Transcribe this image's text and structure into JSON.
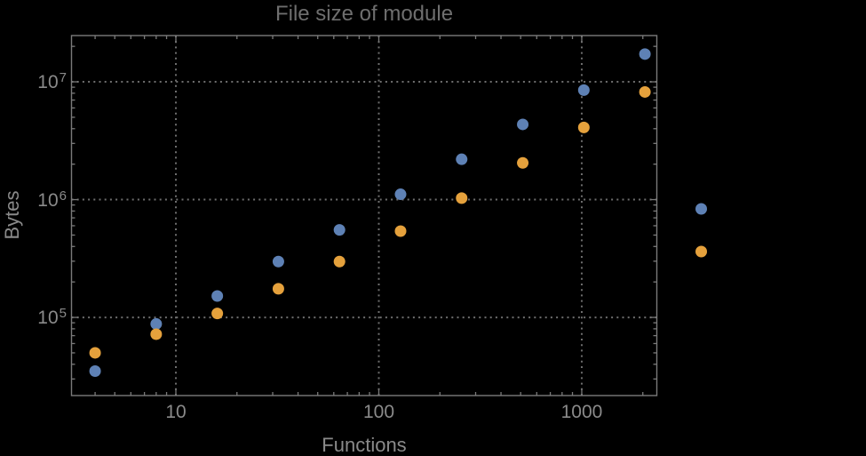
{
  "title": "File size of module",
  "axes": {
    "x": {
      "label": "Functions",
      "ticks": [
        {
          "label": "10",
          "value": 10
        },
        {
          "label": "100",
          "value": 100
        },
        {
          "label": "1000",
          "value": 1000
        }
      ]
    },
    "y": {
      "label": "Bytes",
      "ticks": [
        {
          "base": "10",
          "exp": "7",
          "value": 10000000
        },
        {
          "base": "10",
          "exp": "6",
          "value": 1000000
        },
        {
          "base": "10",
          "exp": "5",
          "value": 100000
        }
      ]
    }
  },
  "colors": {
    "background": "#000000",
    "frame": "#7a7a7a",
    "grid": "#6e6e6e",
    "tick_text": "#8a8a8a",
    "title_text": "#6e6e6e",
    "series_blue": "#5e81b5",
    "series_orange": "#e5a13c"
  },
  "chart_data": {
    "type": "scatter",
    "title": "File size of module",
    "xlabel": "Functions",
    "ylabel": "Bytes",
    "x_scale": "log",
    "y_scale": "log",
    "xlim": [
      3.06,
      2344
    ],
    "ylim": [
      21700,
      24700000
    ],
    "grid": "dotted gray lines at powers of ten, framed plot with inward ticks on all four sides",
    "legend_position": "right of frame, markers only (no visible label text)",
    "series": [
      {
        "name": "blue",
        "color": "#5e81b5",
        "marker": "circle",
        "points": [
          [
            4,
            35000
          ],
          [
            8,
            88000
          ],
          [
            16,
            152000
          ],
          [
            32,
            298000
          ],
          [
            64,
            553000
          ],
          [
            128,
            1110000
          ],
          [
            256,
            2200000
          ],
          [
            512,
            4350000
          ],
          [
            1024,
            8500000
          ],
          [
            2048,
            17200000
          ]
        ]
      },
      {
        "name": "orange",
        "color": "#e5a13c",
        "marker": "circle",
        "points": [
          [
            4,
            50000
          ],
          [
            8,
            72000
          ],
          [
            16,
            108000
          ],
          [
            32,
            175000
          ],
          [
            64,
            298000
          ],
          [
            128,
            540000
          ],
          [
            256,
            1030000
          ],
          [
            512,
            2050000
          ],
          [
            1024,
            4100000
          ],
          [
            2048,
            8200000
          ]
        ]
      }
    ],
    "unlabeled_markers_outside_frame": [
      {
        "color": "#5e81b5",
        "approx_x": 3880,
        "approx_bytes": 834000
      },
      {
        "color": "#e5a13c",
        "approx_x": 3880,
        "approx_bytes": 362000
      }
    ]
  }
}
